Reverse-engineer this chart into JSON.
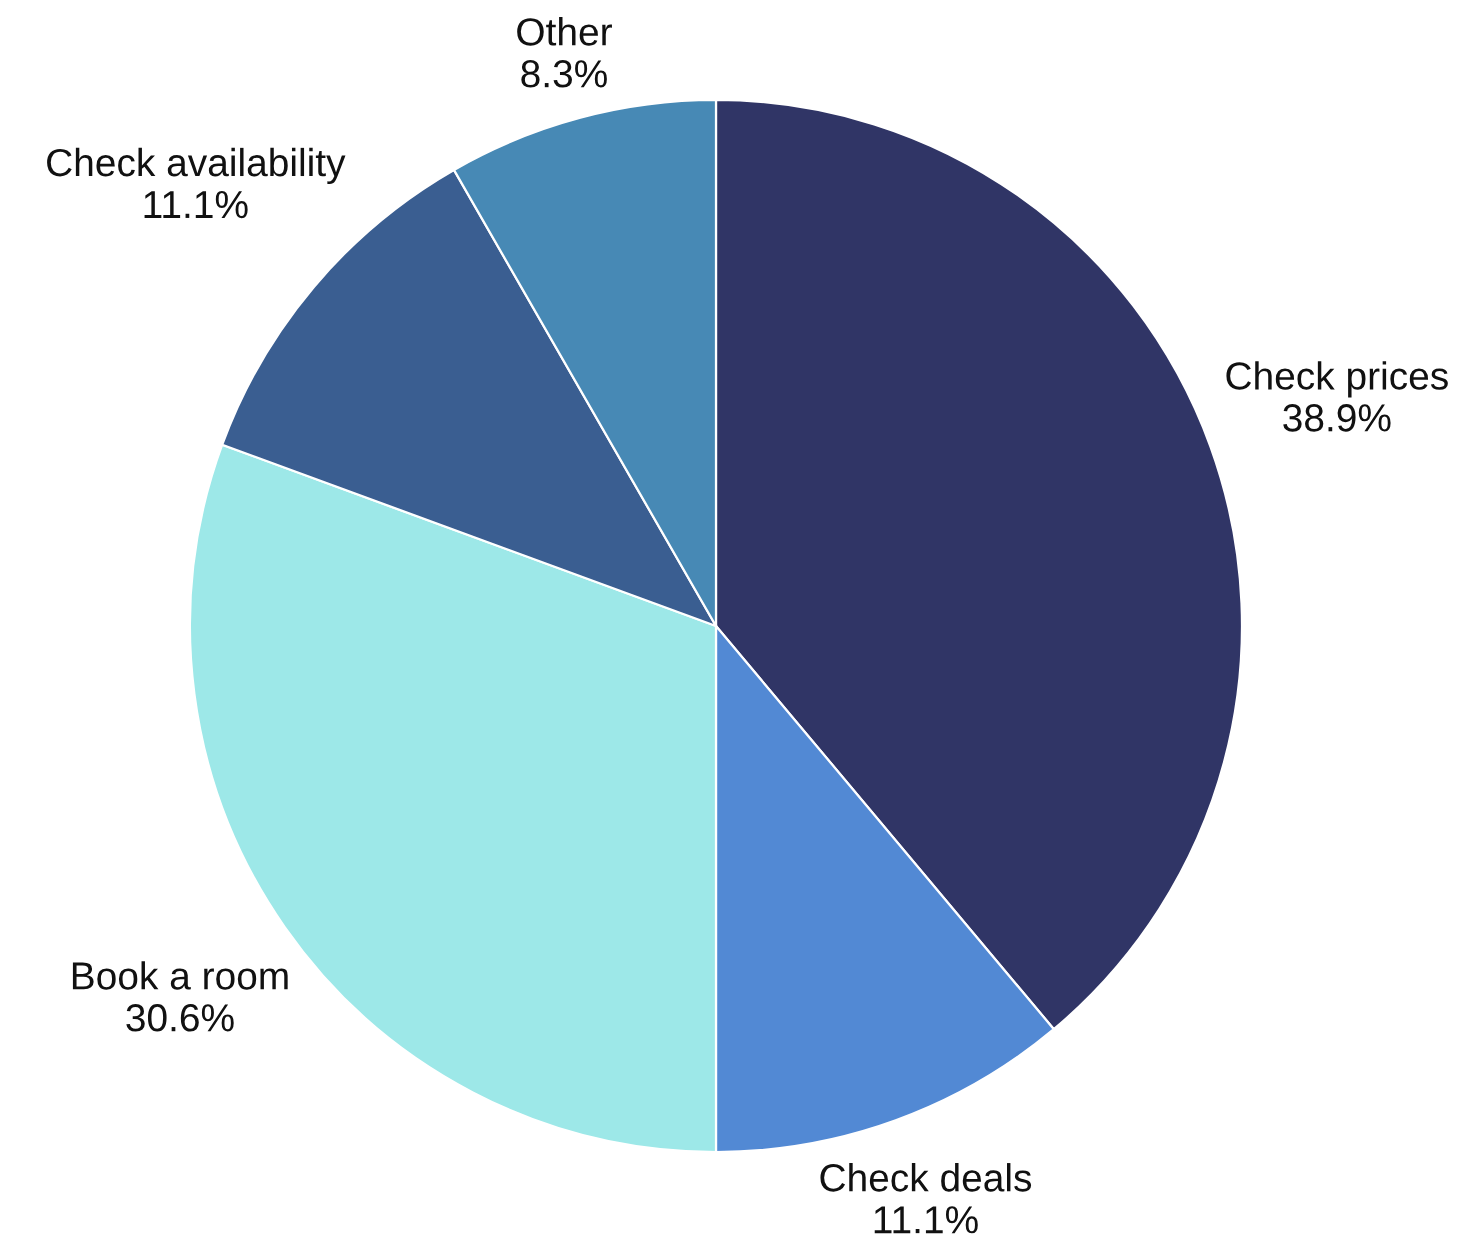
{
  "chart_data": {
    "type": "pie",
    "categories": [
      "Check prices",
      "Check deals",
      "Book a room",
      "Check availability",
      "Other"
    ],
    "values": [
      38.9,
      11.1,
      30.6,
      11.1,
      8.3
    ],
    "colors": [
      "#303566",
      "#5289d4",
      "#9de8e8",
      "#3a5e91",
      "#4789b5"
    ],
    "value_labels": [
      "38.9%",
      "11.1%",
      "30.6%",
      "11.1%",
      "8.3%"
    ],
    "legend": false
  }
}
